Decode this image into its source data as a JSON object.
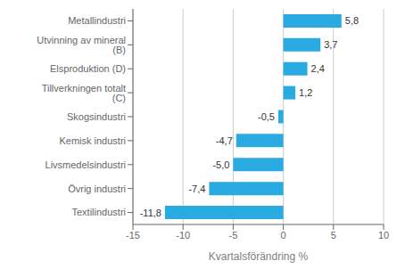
{
  "chart_data": {
    "type": "bar",
    "orientation": "horizontal",
    "categories": [
      "Textilindustri",
      "Övrig industri",
      "Livsmedelsindustri",
      "Kemisk industri",
      "Skogsindustri",
      "Tillverkningen totalt (C)",
      "Elsproduktion (D)",
      "Utvinning av mineral (B)",
      "Metallindustri"
    ],
    "values": [
      -11.8,
      -7.4,
      -5.0,
      -4.7,
      -0.5,
      1.2,
      2.4,
      3.7,
      5.8
    ],
    "value_labels": [
      "-11,8",
      "-7,4",
      "-5,0",
      "-4,7",
      "-0,5",
      "1,2",
      "2,4",
      "3,7",
      "5,8"
    ],
    "data_labels": true,
    "color": "#29ABE2",
    "xlabel": "Kvartalsförändring %",
    "xlim": [
      -15,
      10
    ],
    "xticks": [
      -15,
      -10,
      -5,
      0,
      5,
      10
    ],
    "grid": true
  }
}
